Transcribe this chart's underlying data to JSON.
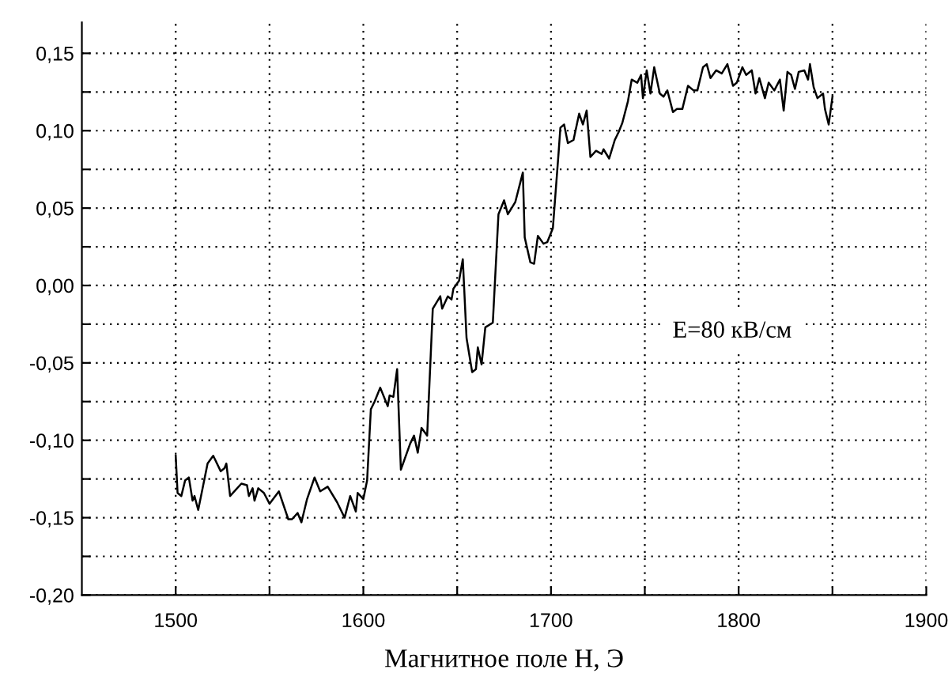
{
  "chart_data": {
    "type": "line",
    "xlabel": "Магнитное поле H, Э",
    "annotations": [
      "E=80 кВ/см"
    ],
    "xlim": [
      1450,
      1900
    ],
    "ylim": [
      -0.2,
      0.17
    ],
    "xticks": [
      1500,
      {
        "value": 1550,
        "label": null
      },
      1600,
      {
        "value": 1650,
        "label": null
      },
      1700,
      {
        "value": 1750,
        "label": null
      },
      1800,
      {
        "value": 1850,
        "label": null
      },
      1900
    ],
    "yticks": [
      {
        "value": -0.2,
        "label": "-0,20"
      },
      {
        "value": -0.175,
        "label": null
      },
      {
        "value": -0.15,
        "label": "-0,15"
      },
      {
        "value": -0.125,
        "label": null
      },
      {
        "value": -0.1,
        "label": "-0,10"
      },
      {
        "value": -0.075,
        "label": null
      },
      {
        "value": -0.05,
        "label": "-0,05"
      },
      {
        "value": -0.025,
        "label": null
      },
      {
        "value": 0,
        "label": "0,00"
      },
      {
        "value": 0.025,
        "label": null
      },
      {
        "value": 0.05,
        "label": "0,05"
      },
      {
        "value": 0.075,
        "label": null
      },
      {
        "value": 0.1,
        "label": "0,10"
      },
      {
        "value": 0.125,
        "label": null
      },
      {
        "value": 0.15,
        "label": "0,15"
      }
    ],
    "grid": true,
    "marker": "none",
    "line_style": "solid",
    "series": [
      {
        "color": "#000000",
        "x": [
          1500,
          1501,
          1503,
          1505,
          1507,
          1509,
          1510,
          1512,
          1517,
          1520,
          1524,
          1526,
          1527,
          1529,
          1535,
          1538,
          1539,
          1541,
          1542,
          1544,
          1547,
          1550,
          1555,
          1560,
          1562,
          1565,
          1567,
          1570,
          1574,
          1577,
          1581,
          1586,
          1590,
          1593,
          1596,
          1597,
          1600,
          1602,
          1604,
          1606,
          1609,
          1613,
          1614,
          1616,
          1618,
          1620,
          1625,
          1627,
          1629,
          1631,
          1634,
          1637,
          1641,
          1642,
          1645,
          1647,
          1648,
          1651,
          1653,
          1655,
          1658,
          1660,
          1661,
          1663,
          1665,
          1669,
          1672,
          1675,
          1677,
          1681,
          1685,
          1686,
          1689,
          1691,
          1693,
          1696,
          1698,
          1701,
          1704,
          1705,
          1707,
          1709,
          1712,
          1715,
          1717,
          1719,
          1721,
          1724,
          1727,
          1728,
          1731,
          1734,
          1736,
          1738,
          1741,
          1743,
          1746,
          1748,
          1749,
          1751,
          1753,
          1755,
          1758,
          1760,
          1762,
          1765,
          1767,
          1770,
          1773,
          1776,
          1778,
          1781,
          1783,
          1785,
          1788,
          1791,
          1794,
          1797,
          1799,
          1802,
          1804,
          1807,
          1809,
          1811,
          1814,
          1816,
          1819,
          1822,
          1824,
          1826,
          1828,
          1830,
          1832,
          1835,
          1837,
          1838,
          1840,
          1842,
          1845,
          1846,
          1848,
          1850
        ],
        "values": [
          -0.11,
          -0.134,
          -0.136,
          -0.126,
          -0.124,
          -0.139,
          -0.136,
          -0.145,
          -0.115,
          -0.11,
          -0.12,
          -0.118,
          -0.115,
          -0.136,
          -0.128,
          -0.129,
          -0.136,
          -0.131,
          -0.139,
          -0.131,
          -0.134,
          -0.141,
          -0.133,
          -0.151,
          -0.151,
          -0.147,
          -0.153,
          -0.138,
          -0.124,
          -0.133,
          -0.13,
          -0.14,
          -0.15,
          -0.136,
          -0.146,
          -0.134,
          -0.138,
          -0.126,
          -0.08,
          -0.075,
          -0.066,
          -0.078,
          -0.071,
          -0.072,
          -0.054,
          -0.119,
          -0.102,
          -0.097,
          -0.108,
          -0.092,
          -0.097,
          -0.015,
          -0.007,
          -0.015,
          -0.007,
          -0.009,
          -0.002,
          0.003,
          0.017,
          -0.034,
          -0.056,
          -0.054,
          -0.04,
          -0.051,
          -0.027,
          -0.024,
          0.046,
          0.055,
          0.046,
          0.054,
          0.073,
          0.031,
          0.015,
          0.014,
          0.032,
          0.027,
          0.028,
          0.037,
          0.085,
          0.102,
          0.104,
          0.092,
          0.094,
          0.111,
          0.104,
          0.113,
          0.083,
          0.087,
          0.085,
          0.088,
          0.082,
          0.094,
          0.099,
          0.105,
          0.119,
          0.133,
          0.131,
          0.136,
          0.121,
          0.139,
          0.124,
          0.141,
          0.124,
          0.122,
          0.126,
          0.112,
          0.114,
          0.114,
          0.129,
          0.126,
          0.126,
          0.141,
          0.143,
          0.134,
          0.139,
          0.137,
          0.143,
          0.129,
          0.131,
          0.141,
          0.136,
          0.139,
          0.124,
          0.134,
          0.121,
          0.131,
          0.126,
          0.133,
          0.113,
          0.138,
          0.136,
          0.127,
          0.138,
          0.139,
          0.133,
          0.143,
          0.128,
          0.121,
          0.124,
          0.114,
          0.104,
          0.122
        ]
      }
    ]
  }
}
